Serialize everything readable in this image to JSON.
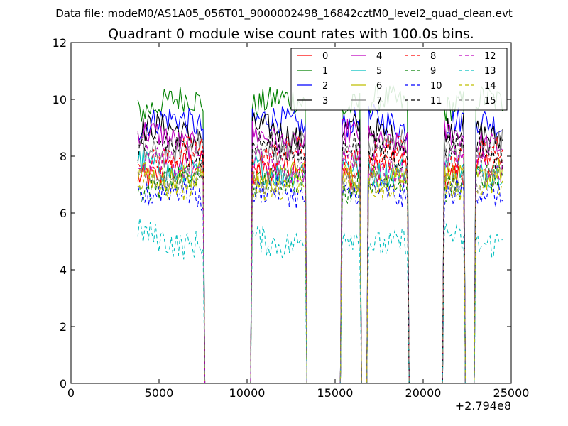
{
  "chart_data": {
    "type": "line",
    "suptitle": "Data file: modeM0/AS1A05_056T01_9000002498_16842cztM0_level2_quad_clean.evt",
    "title": "Quadrant 0 module wise count rates with 100.0s bins.",
    "xlabel": "",
    "ylabel": "",
    "xlim": [
      0,
      25000
    ],
    "ylim": [
      0,
      12
    ],
    "x_offset_label": "+2.794e8",
    "x_ticks": [
      0,
      5000,
      10000,
      15000,
      20000,
      25000
    ],
    "x_tick_labels": [
      "0",
      "5000",
      "10000",
      "15000",
      "20000",
      "25000"
    ],
    "y_ticks": [
      0,
      2,
      4,
      6,
      8,
      10,
      12
    ],
    "y_tick_labels": [
      "0",
      "2",
      "4",
      "6",
      "8",
      "10",
      "12"
    ],
    "bin_size_s": 100,
    "on_intervals": [
      [
        3800,
        7500
      ],
      [
        10000,
        13300
      ],
      [
        15400,
        19100
      ],
      [
        21200,
        24500
      ]
    ],
    "shutoff_gaps": [
      [
        9900,
        10300
      ],
      [
        16400,
        16900
      ],
      [
        22300,
        23000
      ]
    ],
    "legend": {
      "location": "upper right",
      "ncol": 4
    },
    "series": [
      {
        "name": "0",
        "color": "#ff0000",
        "dash": "solid",
        "level": 7.5
      },
      {
        "name": "1",
        "color": "#008000",
        "dash": "solid",
        "level": 9.8
      },
      {
        "name": "2",
        "color": "#0000ff",
        "dash": "solid",
        "level": 9.1
      },
      {
        "name": "3",
        "color": "#000000",
        "dash": "solid",
        "level": 8.8
      },
      {
        "name": "4",
        "color": "#bf00bf",
        "dash": "solid",
        "level": 8.6
      },
      {
        "name": "5",
        "color": "#00bfbf",
        "dash": "solid",
        "level": 7.6
      },
      {
        "name": "6",
        "color": "#bfbf00",
        "dash": "solid",
        "level": 7.4
      },
      {
        "name": "7",
        "color": "#808080",
        "dash": "solid",
        "level": 8.3
      },
      {
        "name": "8",
        "color": "#ff0000",
        "dash": "dashed",
        "level": 8.0
      },
      {
        "name": "9",
        "color": "#008000",
        "dash": "dashed",
        "level": 7.0
      },
      {
        "name": "10",
        "color": "#0000ff",
        "dash": "dashed",
        "level": 6.6
      },
      {
        "name": "11",
        "color": "#000000",
        "dash": "dashed",
        "level": 8.2
      },
      {
        "name": "12",
        "color": "#bf00bf",
        "dash": "dashed",
        "level": 7.7
      },
      {
        "name": "13",
        "color": "#00bfbf",
        "dash": "dashed",
        "level": 5.1
      },
      {
        "name": "14",
        "color": "#bfbf00",
        "dash": "dashed",
        "level": 7.1
      },
      {
        "name": "15",
        "color": "#808080",
        "dash": "dashed",
        "level": 7.3
      }
    ]
  }
}
